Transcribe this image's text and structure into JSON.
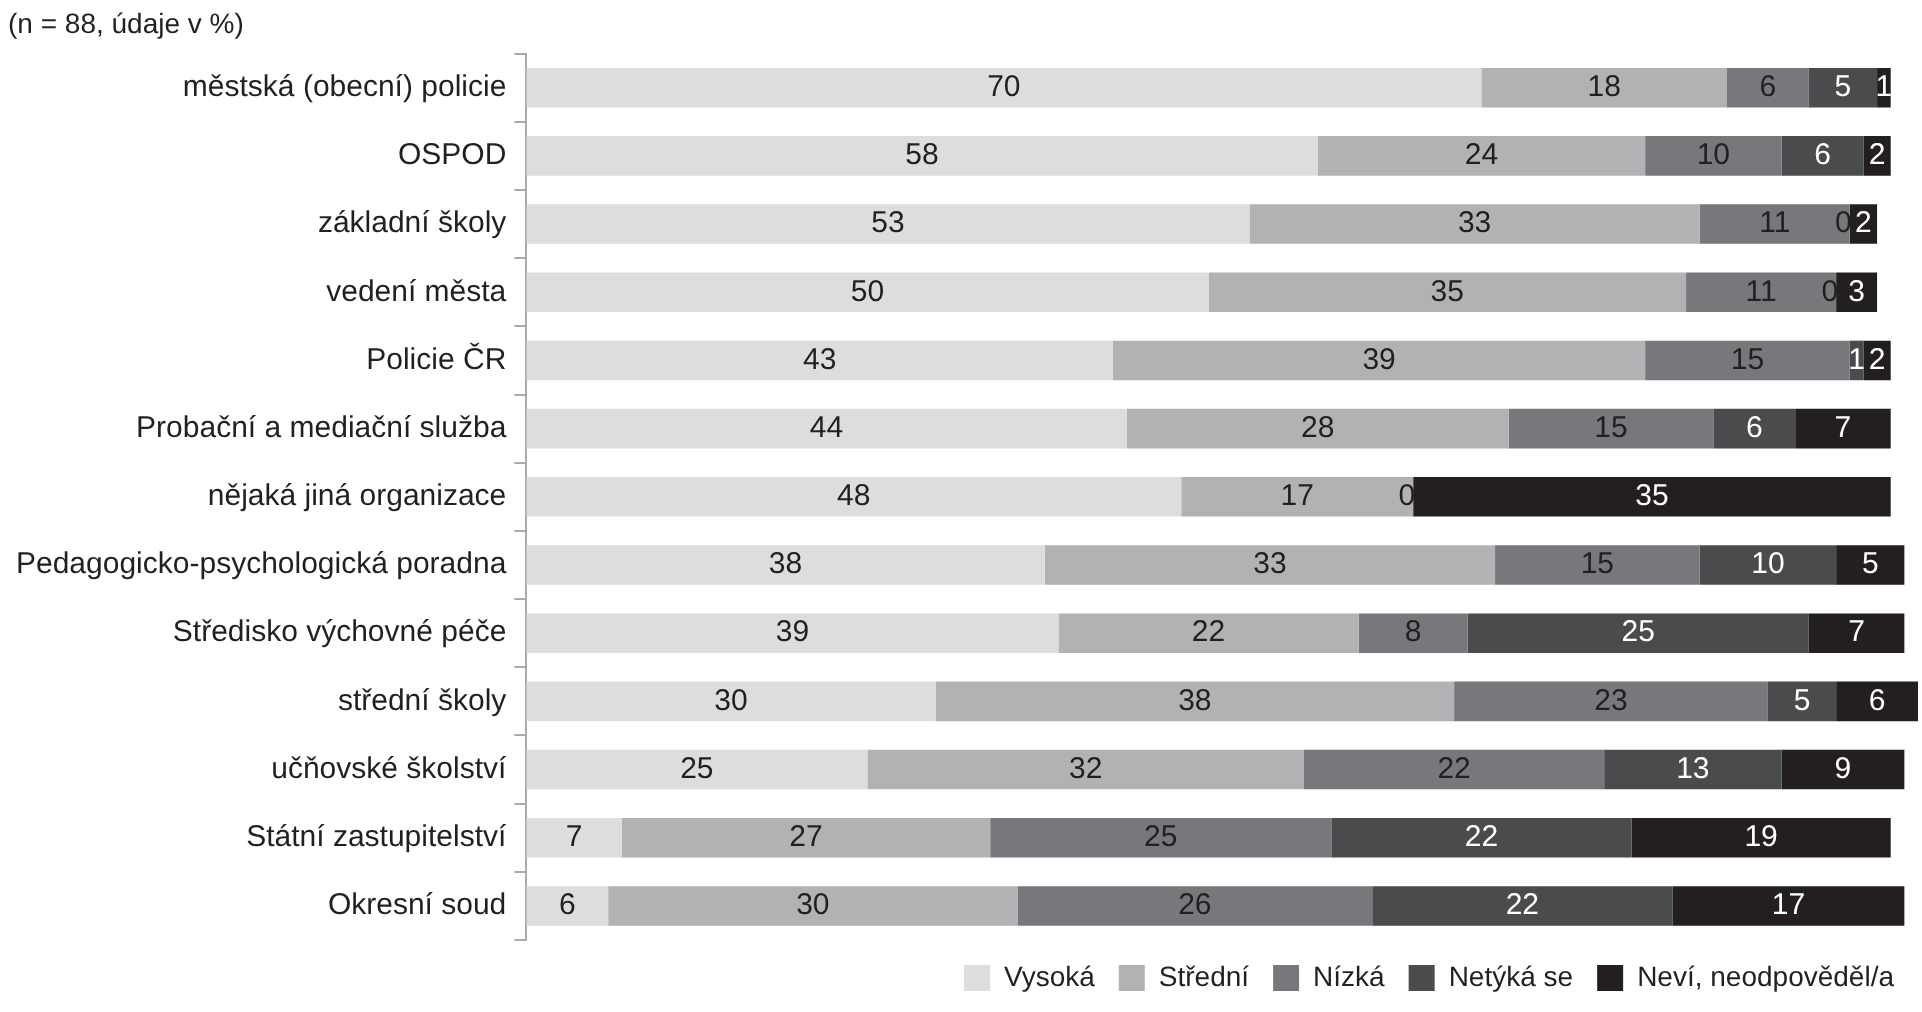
{
  "chart_data": {
    "type": "bar",
    "orientation": "horizontal",
    "stacked": true,
    "title": "(n = 88, údaje v %)",
    "categories": [
      "městská (obecní) policie",
      "OSPOD",
      "základní školy",
      "vedení města",
      "Policie ČR",
      "Probační a mediační služba",
      "nějaká jiná organizace",
      "Pedagogicko-psychologická poradna",
      "Středisko výchovné péče",
      "střední školy",
      "učňovské školství",
      "Státní zastupitelství",
      "Okresní soud"
    ],
    "series": [
      {
        "name": "Vysoká",
        "color": "#dcdddf",
        "values": [
          70,
          58,
          53,
          50,
          43,
          44,
          48,
          38,
          39,
          30,
          25,
          7,
          6
        ],
        "value_labels": [
          "70",
          "58",
          "53",
          "50",
          "43",
          "44",
          "48",
          "38",
          "39",
          "30",
          "25",
          "7",
          "6"
        ]
      },
      {
        "name": "Střední",
        "color": "#b1b2b4",
        "values": [
          18,
          24,
          33,
          35,
          39,
          28,
          17,
          33,
          22,
          38,
          32,
          27,
          30
        ],
        "value_labels": [
          "18",
          "24",
          "33",
          "35",
          "39",
          "28",
          "17",
          "33",
          "22",
          "38",
          "32",
          "27",
          "30"
        ]
      },
      {
        "name": "Nízká",
        "color": "#77787b",
        "values": [
          6,
          10,
          11,
          11,
          15,
          15,
          null,
          15,
          8,
          23,
          22,
          25,
          26
        ],
        "value_labels": [
          "6",
          "10",
          "11",
          "11",
          "15",
          "15",
          null,
          "15",
          "8",
          "23",
          "22",
          "25",
          "26"
        ]
      },
      {
        "name": "Netýká se",
        "color": "#4a4b4d",
        "values": [
          5,
          6,
          0,
          0,
          1,
          6,
          null,
          10,
          25,
          5,
          13,
          22,
          22
        ],
        "value_labels": [
          "5",
          "6",
          "0",
          "0",
          "1",
          "6",
          null,
          "10",
          "25",
          "5",
          "13",
          "22",
          "22"
        ]
      },
      {
        "name": "Neví, neodpověděl/a",
        "color": "#231f20",
        "values": [
          1,
          2,
          2,
          3,
          2,
          7,
          35,
          5,
          7,
          6,
          9,
          19,
          17
        ],
        "value_labels": [
          "1",
          "2",
          "2",
          "3",
          "2",
          "7",
          "35",
          "5",
          "7",
          "6",
          "9",
          "19",
          "17"
        ]
      }
    ],
    "annotations": [
      {
        "text": "0",
        "x": 65,
        "y": "nějaká jiná organizace"
      }
    ],
    "xlim": [
      0,
      102
    ],
    "tick_labels": "y",
    "legend": "bottom"
  }
}
